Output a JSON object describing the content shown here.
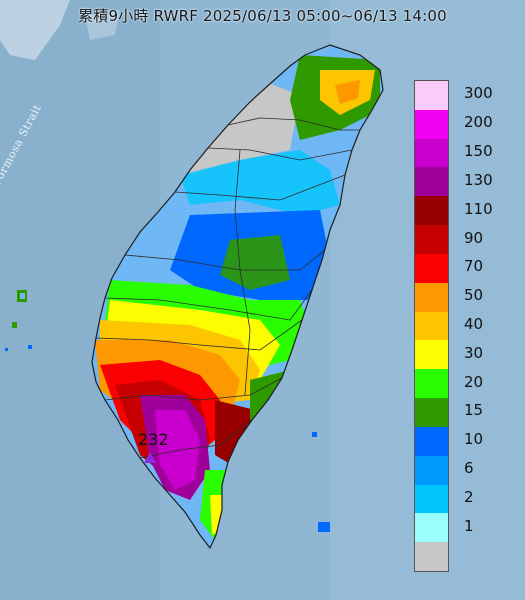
{
  "title": "累積9小時 RWRF 2025/06/13 05:00~06/13 14:00",
  "strait_label": "Formosa Strait",
  "max_value": "232",
  "legend": {
    "items": [
      {
        "label": "300",
        "color": "#fccaf9"
      },
      {
        "label": "200",
        "color": "#f100f4"
      },
      {
        "label": "150",
        "color": "#c900cd"
      },
      {
        "label": "130",
        "color": "#a0009a"
      },
      {
        "label": "110",
        "color": "#980000"
      },
      {
        "label": "90",
        "color": "#c60000"
      },
      {
        "label": "70",
        "color": "#fb0000"
      },
      {
        "label": "50",
        "color": "#fd9800"
      },
      {
        "label": "40",
        "color": "#fdc400"
      },
      {
        "label": "30",
        "color": "#fefc00"
      },
      {
        "label": "20",
        "color": "#29fd00"
      },
      {
        "label": "15",
        "color": "#2f9a00"
      },
      {
        "label": "10",
        "color": "#0068fd"
      },
      {
        "label": "6",
        "color": "#0099fd"
      },
      {
        "label": "2",
        "color": "#00c6fd"
      },
      {
        "label": "1",
        "color": "#9afefd"
      },
      {
        "label": "",
        "color": "#c7c7c7"
      }
    ]
  }
}
